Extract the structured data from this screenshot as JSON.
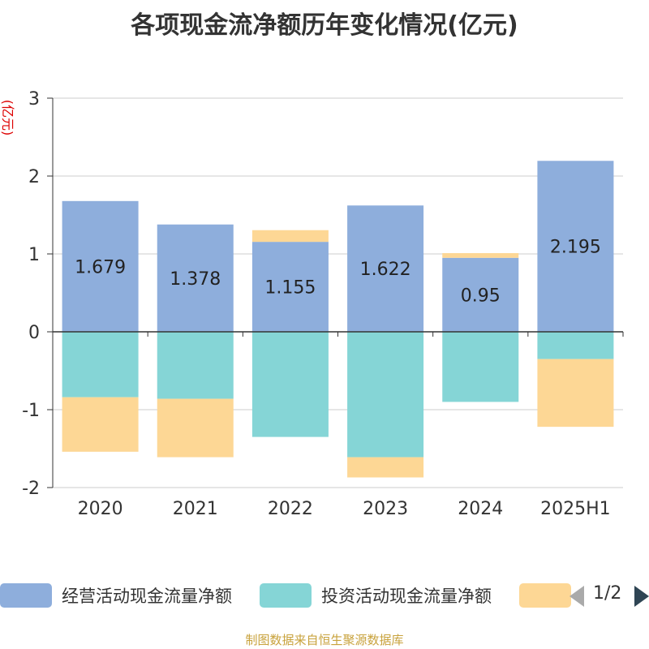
{
  "title": "各项现金流净额历年变化情况(亿元)",
  "source": "制图数据来自恒生聚源数据库",
  "legend": {
    "items": [
      {
        "label": "经营活动现金流量净额",
        "color": "#8eaedc"
      },
      {
        "label": "投资活动现金流量净额",
        "color": "#85d5d6"
      },
      {
        "label": "",
        "color": "#fdd795"
      }
    ],
    "page_indicator": "1/2"
  },
  "chart_data": {
    "type": "bar",
    "stacked": true,
    "categories": [
      "2020",
      "2021",
      "2022",
      "2023",
      "2024",
      "2025H1"
    ],
    "ylabel": "(亿元)",
    "ylim": [
      -2,
      3
    ],
    "yticks": [
      "3",
      "2",
      "1",
      "0",
      "-1",
      "-2"
    ],
    "grid": true,
    "legend_position": "bottom",
    "series": [
      {
        "name": "经营活动现金流量净额",
        "color": "#8eaedc",
        "values": [
          1.679,
          1.378,
          1.155,
          1.622,
          0.95,
          2.195
        ],
        "labels": [
          "1.679",
          "1.378",
          "1.155",
          "1.622",
          "0.95",
          "2.195"
        ]
      },
      {
        "name": "投资活动现金流量净额",
        "color": "#85d5d6",
        "values": [
          -0.84,
          -0.86,
          -1.35,
          -1.61,
          -0.9,
          -0.35
        ]
      },
      {
        "color": "#fdd795",
        "values": [
          -0.7,
          -0.75,
          0.15,
          -0.26,
          0.06,
          -0.87
        ]
      }
    ]
  }
}
